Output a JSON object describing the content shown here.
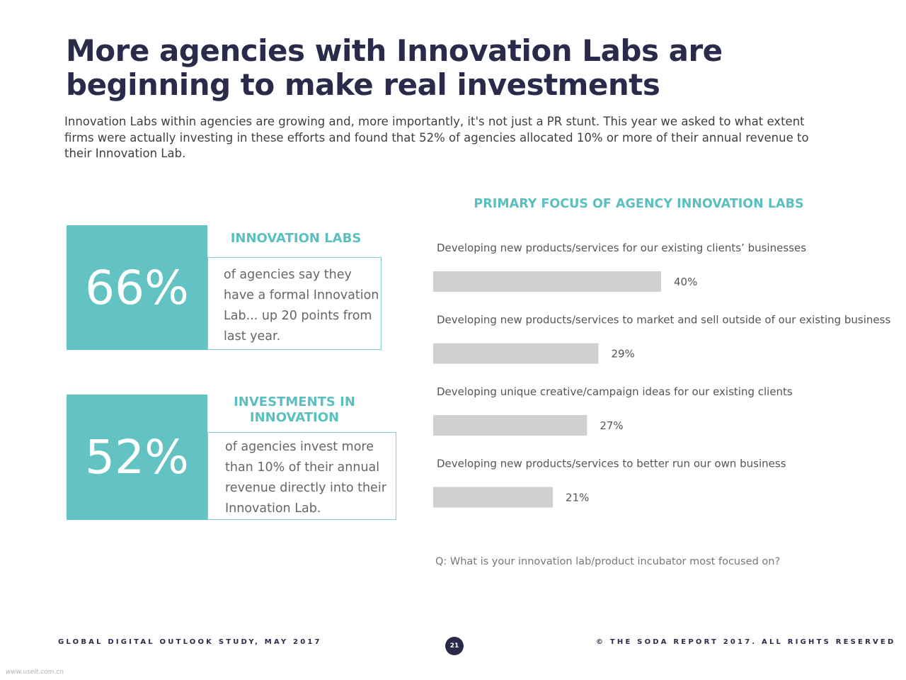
{
  "title": {
    "line1": "More agencies with Innovation Labs are",
    "line2": "beginning to make real investments"
  },
  "intro": "Innovation Labs within agencies are growing and, more importantly, it's not just a PR stunt. This year we asked to what extent firms were actually investing in these efforts and found that 52% of agencies allocated 10% or more of their annual revenue to their Innovation Lab.",
  "stats": [
    {
      "value": "66%",
      "heading": "INNOVATION LABS",
      "text": "of agencies say they have a formal Innovation Lab... up 20 points from last year."
    },
    {
      "value": "52%",
      "heading": "INVESTMENTS IN INNOVATION",
      "text": "of agencies invest more than 10% of their annual revenue directly into their Innovation Lab."
    }
  ],
  "chart_data": {
    "type": "bar",
    "orientation": "horizontal",
    "title": "PRIMARY FOCUS OF AGENCY INNOVATION LABS",
    "categories": [
      "Developing new products/services for our existing clients’ businesses",
      "Developing new products/services to market and sell outside of our existing business",
      "Developing unique creative/campaign ideas for our existing clients",
      "Developing new products/services to better run our own business"
    ],
    "values": [
      40,
      29,
      27,
      21
    ],
    "value_labels": [
      "40%",
      "29%",
      "27%",
      "21%"
    ],
    "unit": "%",
    "xlim": [
      0,
      100
    ],
    "grid": false,
    "bar_color": "#d0d0d0"
  },
  "question": "Q: What is your innovation lab/product incubator most focused on?",
  "footer": {
    "left": "GLOBAL DIGITAL OUTLOOK STUDY, MAY 2017",
    "page": "21",
    "right": "© THE SODA REPORT 2017. ALL RIGHTS RESERVED"
  },
  "watermark": "www.useit.com.cn"
}
